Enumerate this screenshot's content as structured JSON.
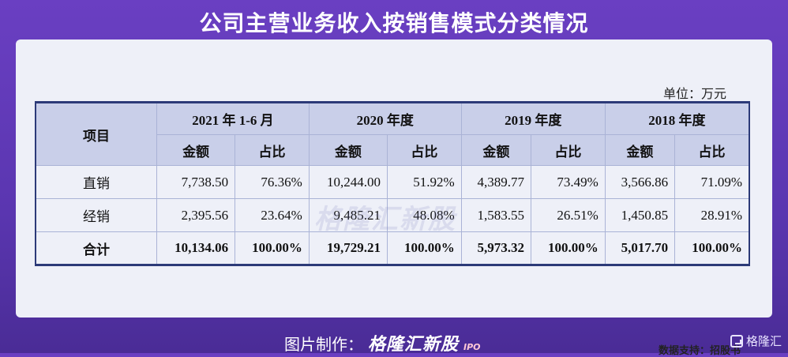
{
  "title": "公司主营业务收入按销售模式分类情况",
  "unit": "单位：万元",
  "watermark": "格隆汇新股",
  "table": {
    "header_item": "项目",
    "periods": [
      "2021 年 1-6 月",
      "2020 年度",
      "2019 年度",
      "2018 年度"
    ],
    "sub_headers": [
      "金额",
      "占比"
    ],
    "rows": [
      {
        "label": "直销",
        "cells": [
          "7,738.50",
          "76.36%",
          "10,244.00",
          "51.92%",
          "4,389.77",
          "73.49%",
          "3,566.86",
          "71.09%"
        ]
      },
      {
        "label": "经销",
        "cells": [
          "2,395.56",
          "23.64%",
          "9,485.21",
          "48.08%",
          "1,583.55",
          "26.51%",
          "1,450.85",
          "28.91%"
        ]
      },
      {
        "label": "合计",
        "cells": [
          "10,134.06",
          "100.00%",
          "19,729.21",
          "100.00%",
          "5,973.32",
          "100.00%",
          "5,017.70",
          "100.00%"
        ]
      }
    ]
  },
  "source": "数据支持：招股书",
  "footer": {
    "credit_label": "图片制作：",
    "brand": "格隆汇新股",
    "brand_sub": "IPO",
    "logo_text": "格隆汇"
  }
}
